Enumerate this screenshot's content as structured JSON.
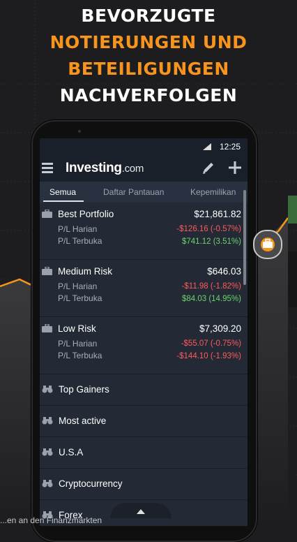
{
  "headline": {
    "line1": "BEVORZUGTE",
    "line2": "NOTIERUNGEN UND",
    "line3": "BETEILIGUNGEN",
    "line4": "NACHVERFOLGEN"
  },
  "status_bar": {
    "time": "12:25"
  },
  "app_bar": {
    "logo_main": "Investing",
    "logo_domain": ".com"
  },
  "tabs": [
    {
      "label": "Semua",
      "active": true
    },
    {
      "label": "Daftar Pantauan",
      "active": false
    },
    {
      "label": "Kepemilikan",
      "active": false
    }
  ],
  "portfolios": [
    {
      "name": "Best Portfolio",
      "total": "$21,861.82",
      "label_daily": "P/L Harian",
      "label_open": "P/L Terbuka",
      "daily": "-$126.16 (-0.57%)",
      "open": "$741.12 (3.51%)"
    },
    {
      "name": "Medium Risk",
      "total": "$646.03",
      "label_daily": "P/L Harian",
      "label_open": "P/L Terbuka",
      "daily": "-$11.98 (-1.82%)",
      "open": "$84.03 (14.95%)"
    },
    {
      "name": "Low Risk",
      "total": "$7,309.20",
      "label_daily": "P/L Harian",
      "label_open": "P/L Terbuka",
      "daily": "-$55.07 (-0.75%)",
      "open": "-$144.10 (-1.93%)"
    }
  ],
  "watchlists": [
    {
      "label": "Top Gainers"
    },
    {
      "label": "Most active"
    },
    {
      "label": "U.S.A"
    },
    {
      "label": "Cryptocurrency"
    },
    {
      "label": "Forex"
    }
  ],
  "footer_text": "...en an den Finanzmärkten",
  "colors": {
    "accent": "#f7941d",
    "negative": "#ff5a5a",
    "positive": "#6dd36d",
    "screen_bg": "#232a35"
  }
}
